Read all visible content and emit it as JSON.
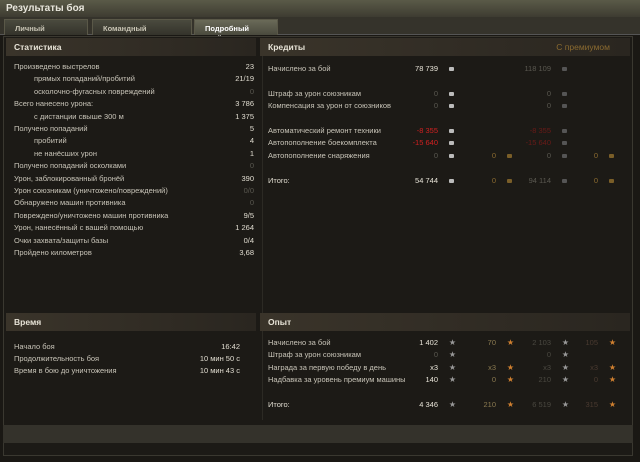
{
  "window": {
    "title": "Результаты боя"
  },
  "tabs": [
    {
      "label": "Личный результат"
    },
    {
      "label": "Командный результат"
    },
    {
      "label": "Подробный отчёт",
      "active": true
    }
  ],
  "stats": {
    "header": "Статистика",
    "rows": [
      {
        "label": "Произведено выстрелов",
        "value": "23"
      },
      {
        "label": "прямых попаданий/пробитий",
        "value": "21/19",
        "indent": true
      },
      {
        "label": "осколочно-фугасных повреждений",
        "value": "0",
        "indent": true,
        "dim": true
      },
      {
        "label": "Всего нанесено урона:",
        "value": "3 786"
      },
      {
        "label": "с дистанции свыше 300 м",
        "value": "1 375",
        "indent": true
      },
      {
        "label": "Получено попаданий",
        "value": "5"
      },
      {
        "label": "пробитий",
        "value": "4",
        "indent": true
      },
      {
        "label": "не нанёсших урон",
        "value": "1",
        "indent": true
      },
      {
        "label": "Получено попаданий осколками",
        "value": "0",
        "dim": true
      },
      {
        "label": "Урон, заблокированный бронёй",
        "value": "390"
      },
      {
        "label": "Урон союзникам (уничтожено/повреждений)",
        "value": "0/0",
        "dim": true
      },
      {
        "label": "Обнаружено машин противника",
        "value": "0",
        "dim": true
      },
      {
        "label": "Повреждено/уничтожено машин противника",
        "value": "9/5"
      },
      {
        "label": "Урон, нанесённый с вашей помощью",
        "value": "1 264"
      },
      {
        "label": "Очки захвата/защиты базы",
        "value": "0/4"
      },
      {
        "label": "Пройдено километров",
        "value": "3,68"
      }
    ]
  },
  "time": {
    "header": "Время",
    "rows": [
      {
        "label": "Начало боя",
        "value": "16:42"
      },
      {
        "label": "Продолжительность боя",
        "value": "10 мин 50 с"
      },
      {
        "label": "Время в бою до уничтожения",
        "value": "10 мин 43 с"
      }
    ]
  },
  "credits": {
    "header": "Кредиты",
    "premium_header": "С премиумом",
    "rows": [
      {
        "label": "Начислено за бой",
        "c1": "78 739",
        "c2": "",
        "c3": "118 109",
        "c4": ""
      },
      {
        "label": "Штраф за урон союзникам",
        "c1": "0",
        "c2": "",
        "c3": "0",
        "c4": ""
      },
      {
        "label": "Компенсация за урон от союзников",
        "c1": "0",
        "c2": "",
        "c3": "0",
        "c4": ""
      },
      {
        "label": "Автоматический ремонт техники",
        "c1": "-8 355",
        "c2": "",
        "c3": "-8 355",
        "c4": ""
      },
      {
        "label": "Автопополнение боекомплекта",
        "c1": "-15 640",
        "c2": "",
        "c3": "-15 640",
        "c4": ""
      },
      {
        "label": "Автопополнение снаряжения",
        "c1": "0",
        "c2": "0",
        "c3": "0",
        "c4": "0"
      },
      {
        "label": "Итого:",
        "c1": "54 744",
        "c2": "0",
        "c3": "94 114",
        "c4": "0"
      }
    ]
  },
  "experience": {
    "header": "Опыт",
    "rows": [
      {
        "label": "Начислено за бой",
        "c1": "1 402",
        "c2": "70",
        "c3": "2 103",
        "c4": "105"
      },
      {
        "label": "Штраф за урон союзникам",
        "c1": "0",
        "c2": "",
        "c3": "0",
        "c4": ""
      },
      {
        "label": "Награда за первую победу в день",
        "c1": "x3",
        "c2": "x3",
        "c3": "x3",
        "c4": "x3"
      },
      {
        "label": "Надбавка за уровень премиум машины",
        "c1": "140",
        "c2": "0",
        "c3": "210",
        "c4": "0"
      },
      {
        "label": "Итого:",
        "c1": "4 346",
        "c2": "210",
        "c3": "6 519",
        "c4": "315"
      }
    ]
  },
  "colors": {
    "negative": "#d02020",
    "accent": "#8a6a30"
  }
}
